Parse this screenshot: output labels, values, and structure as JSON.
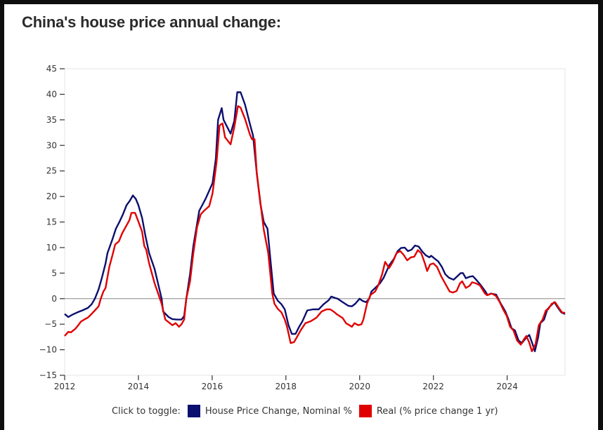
{
  "page": {
    "title": "China's house price annual change:"
  },
  "legend": {
    "lead": "Click to toggle:",
    "items": [
      {
        "label": "House Price Change, Nominal %",
        "color": "#0b0f6e"
      },
      {
        "label": "Real (% price change 1 yr)",
        "color": "#e00000"
      }
    ]
  },
  "chart_data": {
    "type": "line",
    "title": "China's house price annual change:",
    "xlabel": "",
    "ylabel": "",
    "xlim": [
      2012,
      2025.57
    ],
    "ylim": [
      -15,
      45
    ],
    "x_ticks": [
      2012,
      2014,
      2016,
      2018,
      2020,
      2022,
      2024
    ],
    "x_tick_labels": [
      "2012",
      "2014",
      "2016",
      "2018",
      "2020",
      "2022",
      "2024"
    ],
    "y_ticks": [
      45,
      40,
      35,
      30,
      25,
      20,
      15,
      10,
      5,
      0,
      -5,
      -10,
      -15
    ],
    "y_tick_labels": [
      "45",
      "40",
      "35",
      "30",
      "25",
      "20",
      "15",
      "10",
      "5",
      "0",
      "−5",
      "−10",
      "−15"
    ],
    "zero_line": true,
    "grid": false,
    "legend_position": "bottom",
    "series": [
      {
        "name": "House Price Change, Nominal %",
        "color": "#0b0f6e",
        "points": [
          [
            2012.0,
            -3.0
          ],
          [
            2012.1,
            -3.6
          ],
          [
            2012.19,
            -3.2
          ],
          [
            2012.34,
            -2.7
          ],
          [
            2012.48,
            -2.3
          ],
          [
            2012.63,
            -1.8
          ],
          [
            2012.73,
            -1.1
          ],
          [
            2012.82,
            0.0
          ],
          [
            2012.92,
            1.8
          ],
          [
            2013.01,
            4.1
          ],
          [
            2013.11,
            6.9
          ],
          [
            2013.16,
            8.9
          ],
          [
            2013.3,
            11.7
          ],
          [
            2013.39,
            13.7
          ],
          [
            2013.49,
            15.1
          ],
          [
            2013.58,
            16.5
          ],
          [
            2013.68,
            18.3
          ],
          [
            2013.77,
            19.2
          ],
          [
            2013.85,
            20.2
          ],
          [
            2013.93,
            19.5
          ],
          [
            2014.0,
            18.3
          ],
          [
            2014.1,
            15.8
          ],
          [
            2014.19,
            12.3
          ],
          [
            2014.29,
            8.9
          ],
          [
            2014.44,
            5.8
          ],
          [
            2014.63,
            0.0
          ],
          [
            2014.67,
            -2.5
          ],
          [
            2014.82,
            -3.6
          ],
          [
            2014.92,
            -4.0
          ],
          [
            2015.05,
            -4.1
          ],
          [
            2015.17,
            -4.1
          ],
          [
            2015.24,
            -3.4
          ],
          [
            2015.3,
            0.0
          ],
          [
            2015.4,
            4.8
          ],
          [
            2015.49,
            10.3
          ],
          [
            2015.65,
            17.2
          ],
          [
            2015.82,
            19.5
          ],
          [
            2016.01,
            22.6
          ],
          [
            2016.1,
            27.4
          ],
          [
            2016.16,
            35.0
          ],
          [
            2016.26,
            37.3
          ],
          [
            2016.31,
            35.0
          ],
          [
            2016.45,
            33.0
          ],
          [
            2016.5,
            32.3
          ],
          [
            2016.6,
            34.8
          ],
          [
            2016.68,
            40.4
          ],
          [
            2016.77,
            40.4
          ],
          [
            2016.89,
            38.0
          ],
          [
            2017.02,
            34.3
          ],
          [
            2017.11,
            31.9
          ],
          [
            2017.21,
            24.5
          ],
          [
            2017.31,
            18.5
          ],
          [
            2017.4,
            15.0
          ],
          [
            2017.5,
            13.7
          ],
          [
            2017.59,
            6.9
          ],
          [
            2017.67,
            1.0
          ],
          [
            2017.78,
            -0.4
          ],
          [
            2017.88,
            -1.1
          ],
          [
            2017.97,
            -2.1
          ],
          [
            2018.07,
            -5.2
          ],
          [
            2018.16,
            -6.9
          ],
          [
            2018.26,
            -6.9
          ],
          [
            2018.36,
            -5.5
          ],
          [
            2018.45,
            -4.4
          ],
          [
            2018.58,
            -2.3
          ],
          [
            2018.74,
            -2.1
          ],
          [
            2018.89,
            -2.1
          ],
          [
            2019.02,
            -1.1
          ],
          [
            2019.16,
            -0.3
          ],
          [
            2019.23,
            0.4
          ],
          [
            2019.35,
            0.1
          ],
          [
            2019.4,
            0.0
          ],
          [
            2019.54,
            -0.7
          ],
          [
            2019.69,
            -1.4
          ],
          [
            2019.79,
            -1.5
          ],
          [
            2019.88,
            -1.0
          ],
          [
            2020.0,
            0.0
          ],
          [
            2020.07,
            -0.4
          ],
          [
            2020.17,
            -0.7
          ],
          [
            2020.26,
            0.0
          ],
          [
            2020.32,
            1.4
          ],
          [
            2020.45,
            2.3
          ],
          [
            2020.55,
            3.0
          ],
          [
            2020.65,
            4.1
          ],
          [
            2020.8,
            6.5
          ],
          [
            2020.93,
            7.8
          ],
          [
            2021.03,
            9.3
          ],
          [
            2021.12,
            9.9
          ],
          [
            2021.22,
            10.0
          ],
          [
            2021.31,
            9.3
          ],
          [
            2021.41,
            9.6
          ],
          [
            2021.5,
            10.4
          ],
          [
            2021.6,
            10.2
          ],
          [
            2021.69,
            9.3
          ],
          [
            2021.79,
            8.5
          ],
          [
            2021.89,
            8.1
          ],
          [
            2021.94,
            8.4
          ],
          [
            2022.04,
            7.8
          ],
          [
            2022.13,
            7.3
          ],
          [
            2022.23,
            6.2
          ],
          [
            2022.32,
            4.8
          ],
          [
            2022.42,
            4.1
          ],
          [
            2022.55,
            3.7
          ],
          [
            2022.65,
            4.4
          ],
          [
            2022.74,
            5.0
          ],
          [
            2022.8,
            5.0
          ],
          [
            2022.88,
            4.0
          ],
          [
            2022.99,
            4.3
          ],
          [
            2023.07,
            4.4
          ],
          [
            2023.16,
            3.7
          ],
          [
            2023.28,
            2.7
          ],
          [
            2023.41,
            1.4
          ],
          [
            2023.47,
            0.7
          ],
          [
            2023.56,
            1.0
          ],
          [
            2023.7,
            0.8
          ],
          [
            2023.83,
            -1.0
          ],
          [
            2023.95,
            -2.5
          ],
          [
            2024.04,
            -4.1
          ],
          [
            2024.12,
            -5.8
          ],
          [
            2024.21,
            -6.2
          ],
          [
            2024.31,
            -8.2
          ],
          [
            2024.4,
            -8.7
          ],
          [
            2024.52,
            -7.6
          ],
          [
            2024.6,
            -7.1
          ],
          [
            2024.69,
            -8.9
          ],
          [
            2024.75,
            -10.3
          ],
          [
            2024.84,
            -7.6
          ],
          [
            2024.9,
            -4.8
          ],
          [
            2025.0,
            -4.1
          ],
          [
            2025.09,
            -2.1
          ],
          [
            2025.19,
            -1.3
          ],
          [
            2025.28,
            -0.7
          ],
          [
            2025.38,
            -1.8
          ],
          [
            2025.47,
            -2.7
          ],
          [
            2025.57,
            -3.0
          ]
        ]
      },
      {
        "name": "Real (% price change 1 yr)",
        "color": "#e00000",
        "points": [
          [
            2012.0,
            -7.3
          ],
          [
            2012.1,
            -6.5
          ],
          [
            2012.17,
            -6.6
          ],
          [
            2012.29,
            -5.9
          ],
          [
            2012.38,
            -5.1
          ],
          [
            2012.44,
            -4.5
          ],
          [
            2012.53,
            -4.1
          ],
          [
            2012.63,
            -3.7
          ],
          [
            2012.73,
            -3.0
          ],
          [
            2012.82,
            -2.3
          ],
          [
            2012.92,
            -1.5
          ],
          [
            2012.98,
            0.0
          ],
          [
            2013.05,
            1.4
          ],
          [
            2013.11,
            2.1
          ],
          [
            2013.21,
            6.2
          ],
          [
            2013.3,
            8.6
          ],
          [
            2013.37,
            10.6
          ],
          [
            2013.47,
            11.2
          ],
          [
            2013.56,
            12.8
          ],
          [
            2013.66,
            14.1
          ],
          [
            2013.76,
            15.4
          ],
          [
            2013.81,
            16.8
          ],
          [
            2013.91,
            16.8
          ],
          [
            2014.0,
            15.1
          ],
          [
            2014.1,
            13.1
          ],
          [
            2014.16,
            10.3
          ],
          [
            2014.21,
            9.6
          ],
          [
            2014.29,
            6.9
          ],
          [
            2014.44,
            3.0
          ],
          [
            2014.63,
            -1.0
          ],
          [
            2014.73,
            -4.1
          ],
          [
            2014.92,
            -5.2
          ],
          [
            2015.01,
            -4.8
          ],
          [
            2015.1,
            -5.5
          ],
          [
            2015.17,
            -5.0
          ],
          [
            2015.24,
            -4.1
          ],
          [
            2015.3,
            0.0
          ],
          [
            2015.4,
            3.4
          ],
          [
            2015.49,
            8.9
          ],
          [
            2015.59,
            14.0
          ],
          [
            2015.69,
            16.5
          ],
          [
            2015.78,
            17.2
          ],
          [
            2015.92,
            18.1
          ],
          [
            2016.01,
            20.6
          ],
          [
            2016.12,
            26.8
          ],
          [
            2016.2,
            33.9
          ],
          [
            2016.28,
            34.3
          ],
          [
            2016.35,
            31.6
          ],
          [
            2016.5,
            30.2
          ],
          [
            2016.6,
            33.6
          ],
          [
            2016.7,
            37.7
          ],
          [
            2016.77,
            37.4
          ],
          [
            2016.89,
            35.2
          ],
          [
            2017.02,
            32.2
          ],
          [
            2017.08,
            31.2
          ],
          [
            2017.15,
            31.2
          ],
          [
            2017.21,
            24.5
          ],
          [
            2017.4,
            13.5
          ],
          [
            2017.52,
            9.0
          ],
          [
            2017.63,
            1.0
          ],
          [
            2017.69,
            -1.0
          ],
          [
            2017.78,
            -2.0
          ],
          [
            2017.88,
            -2.7
          ],
          [
            2017.97,
            -4.1
          ],
          [
            2018.03,
            -5.5
          ],
          [
            2018.13,
            -8.7
          ],
          [
            2018.22,
            -8.5
          ],
          [
            2018.3,
            -7.5
          ],
          [
            2018.4,
            -6.2
          ],
          [
            2018.53,
            -4.8
          ],
          [
            2018.68,
            -4.4
          ],
          [
            2018.83,
            -3.7
          ],
          [
            2018.97,
            -2.5
          ],
          [
            2019.1,
            -2.1
          ],
          [
            2019.2,
            -2.1
          ],
          [
            2019.29,
            -2.5
          ],
          [
            2019.39,
            -3.1
          ],
          [
            2019.54,
            -3.8
          ],
          [
            2019.63,
            -4.8
          ],
          [
            2019.79,
            -5.5
          ],
          [
            2019.86,
            -4.8
          ],
          [
            2019.96,
            -5.2
          ],
          [
            2020.05,
            -5.0
          ],
          [
            2020.1,
            -4.1
          ],
          [
            2020.2,
            -1.0
          ],
          [
            2020.29,
            0.7
          ],
          [
            2020.42,
            1.4
          ],
          [
            2020.51,
            2.7
          ],
          [
            2020.61,
            4.8
          ],
          [
            2020.69,
            7.2
          ],
          [
            2020.8,
            6.0
          ],
          [
            2020.9,
            7.2
          ],
          [
            2021.0,
            8.9
          ],
          [
            2021.1,
            9.3
          ],
          [
            2021.19,
            8.6
          ],
          [
            2021.29,
            7.5
          ],
          [
            2021.39,
            8.1
          ],
          [
            2021.48,
            8.2
          ],
          [
            2021.58,
            9.5
          ],
          [
            2021.67,
            8.9
          ],
          [
            2021.77,
            6.9
          ],
          [
            2021.83,
            5.4
          ],
          [
            2021.91,
            6.7
          ],
          [
            2022.0,
            6.9
          ],
          [
            2022.1,
            6.2
          ],
          [
            2022.21,
            4.4
          ],
          [
            2022.34,
            2.7
          ],
          [
            2022.44,
            1.4
          ],
          [
            2022.53,
            1.2
          ],
          [
            2022.63,
            1.5
          ],
          [
            2022.72,
            3.0
          ],
          [
            2022.78,
            3.4
          ],
          [
            2022.88,
            2.1
          ],
          [
            2022.98,
            2.5
          ],
          [
            2023.05,
            3.2
          ],
          [
            2023.15,
            3.0
          ],
          [
            2023.26,
            2.6
          ],
          [
            2023.4,
            1.0
          ],
          [
            2023.45,
            0.7
          ],
          [
            2023.59,
            1.0
          ],
          [
            2023.7,
            0.5
          ],
          [
            2023.8,
            -0.7
          ],
          [
            2023.89,
            -2.1
          ],
          [
            2023.99,
            -3.4
          ],
          [
            2024.08,
            -5.5
          ],
          [
            2024.17,
            -6.2
          ],
          [
            2024.27,
            -8.2
          ],
          [
            2024.37,
            -9.0
          ],
          [
            2024.46,
            -7.9
          ],
          [
            2024.52,
            -7.3
          ],
          [
            2024.6,
            -8.6
          ],
          [
            2024.67,
            -10.3
          ],
          [
            2024.77,
            -8.9
          ],
          [
            2024.86,
            -5.2
          ],
          [
            2024.96,
            -4.1
          ],
          [
            2025.05,
            -2.3
          ],
          [
            2025.11,
            -2.1
          ],
          [
            2025.21,
            -1.0
          ],
          [
            2025.3,
            -0.7
          ],
          [
            2025.4,
            -1.8
          ],
          [
            2025.49,
            -2.7
          ],
          [
            2025.57,
            -2.8
          ]
        ]
      }
    ]
  }
}
